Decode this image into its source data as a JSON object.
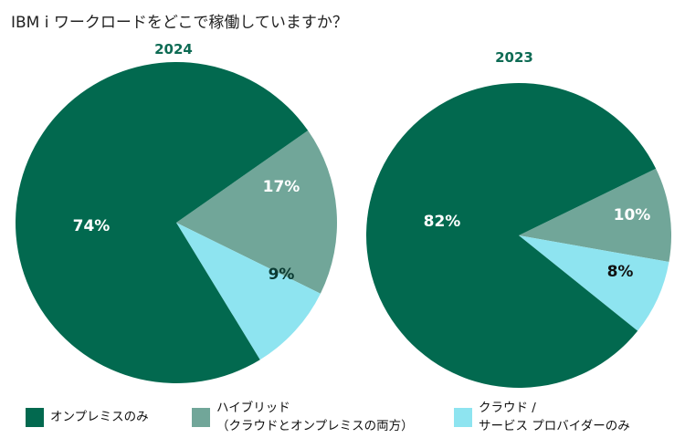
{
  "title": "IBM i ワークロードをどこで稼働していますか？",
  "colors": {
    "onprem": "#02694f",
    "hybrid": "#71a699",
    "cloud": "#8ee4f0",
    "year_label": "#0e6b54"
  },
  "legend": [
    {
      "lines": [
        "オンプレミスのみ"
      ],
      "color_key": "onprem"
    },
    {
      "lines": [
        "ハイブリッド",
        "（クラウドとオンプレミスの両方）"
      ],
      "color_key": "hybrid"
    },
    {
      "lines": [
        "クラウド /",
        "サービス プロバイダーのみ"
      ],
      "color_key": "cloud"
    }
  ],
  "chart_data": [
    {
      "type": "pie",
      "title": "2024",
      "categories": [
        "オンプレミスのみ",
        "ハイブリッド（クラウドとオンプレミスの両方）",
        "クラウド / サービス プロバイダーのみ"
      ],
      "values": [
        74,
        17,
        9
      ],
      "labels": [
        "74%",
        "17%",
        "9%"
      ],
      "colors": [
        "#02694f",
        "#71a699",
        "#8ee4f0"
      ],
      "legend_position": "bottom"
    },
    {
      "type": "pie",
      "title": "2023",
      "categories": [
        "オンプレミスのみ",
        "ハイブリッド（クラウドとオンプレミスの両方）",
        "クラウド / サービス プロバイダーのみ"
      ],
      "values": [
        82,
        10,
        8
      ],
      "labels": [
        "82%",
        "10%",
        "8%"
      ],
      "colors": [
        "#02694f",
        "#71a699",
        "#8ee4f0"
      ],
      "legend_position": "bottom"
    }
  ]
}
